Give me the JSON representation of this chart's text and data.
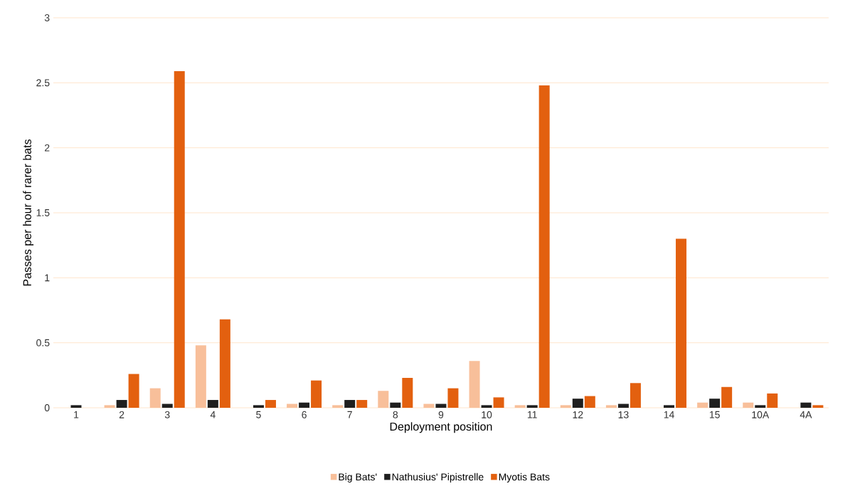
{
  "chart_data": {
    "type": "bar",
    "xlabel": "Deployment position",
    "ylabel": "Passes per hour of rarer bats",
    "categories": [
      "1",
      "2",
      "3",
      "4",
      "5",
      "6",
      "7",
      "8",
      "9",
      "10",
      "11",
      "12",
      "13",
      "14",
      "15",
      "10A",
      "4A"
    ],
    "series": [
      {
        "name": "Big Bats'",
        "color": "#f8bf9a",
        "values": [
          0,
          0.02,
          0.15,
          0.48,
          0,
          0.03,
          0.02,
          0.13,
          0.03,
          0.36,
          0.02,
          0.02,
          0.02,
          0,
          0.04,
          0.04,
          0
        ]
      },
      {
        "name": "Nathusius' Pipistrelle",
        "color": "#1f1f1f",
        "values": [
          0.02,
          0.06,
          0.03,
          0.06,
          0.02,
          0.04,
          0.06,
          0.04,
          0.03,
          0.02,
          0.02,
          0.07,
          0.03,
          0.02,
          0.07,
          0.02,
          0.04
        ]
      },
      {
        "name": "Myotis Bats",
        "color": "#e3600f",
        "values": [
          0,
          0.26,
          2.59,
          0.68,
          0.06,
          0.21,
          0.06,
          0.23,
          0.15,
          0.08,
          2.48,
          0.09,
          0.19,
          1.3,
          0.16,
          0.11,
          0.02
        ]
      }
    ],
    "ylim": [
      0,
      3
    ],
    "yticks": [
      0,
      0.5,
      1,
      1.5,
      2,
      2.5,
      3
    ],
    "grid": "y",
    "legend": "bottom"
  }
}
